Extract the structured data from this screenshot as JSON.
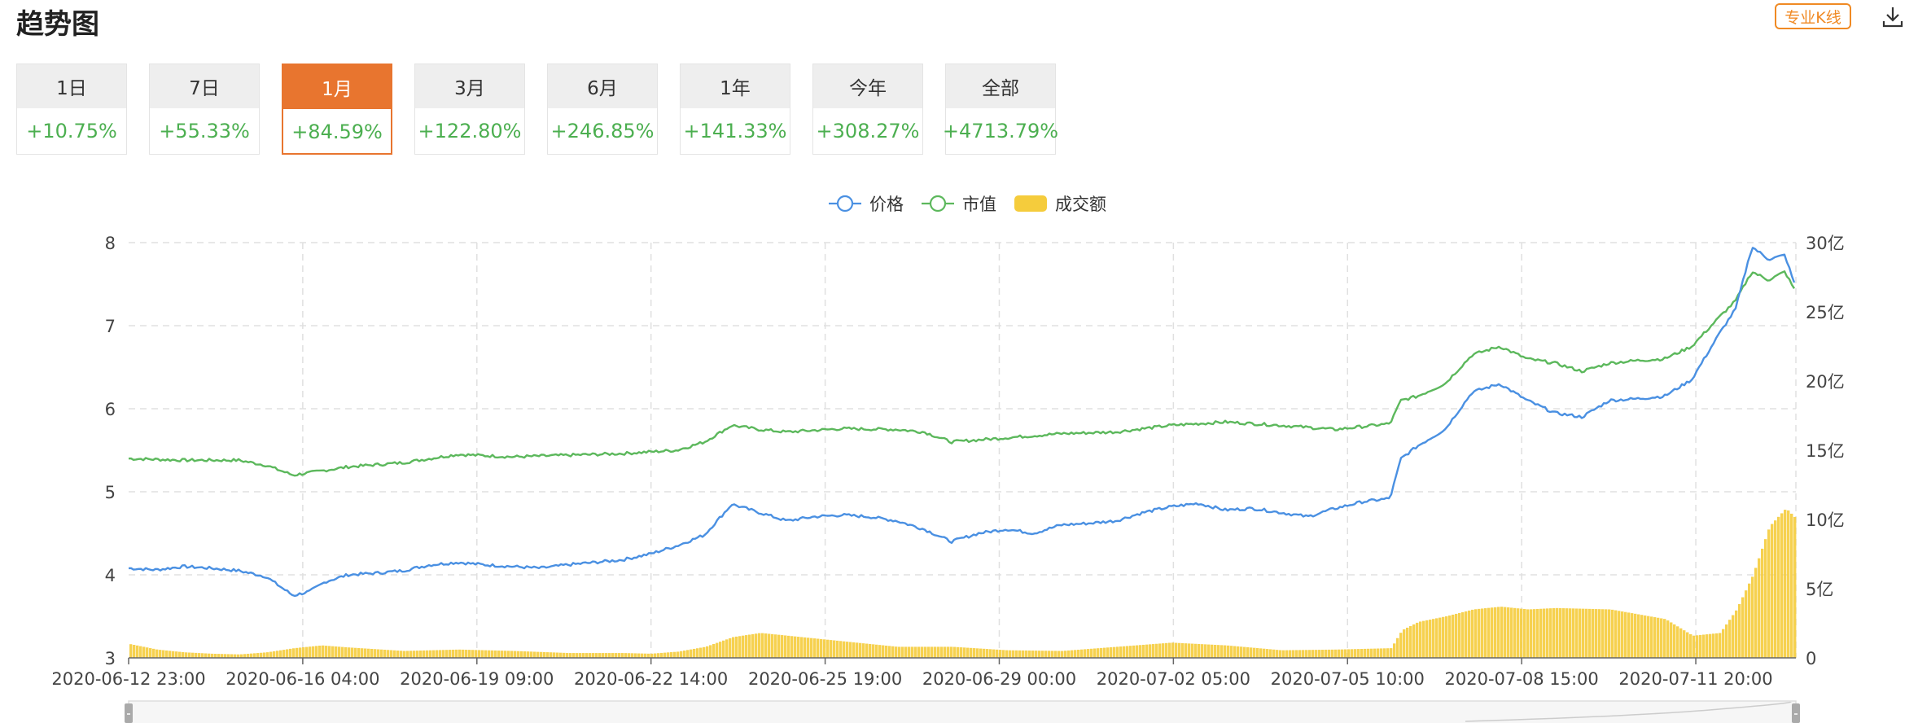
{
  "header": {
    "title": "趋势图",
    "kline_button": "专业K线",
    "download_icon": "download-icon"
  },
  "tabs": [
    {
      "label": "1日",
      "value": "+10.75%"
    },
    {
      "label": "7日",
      "value": "+55.33%"
    },
    {
      "label": "1月",
      "value": "+84.59%",
      "active": true
    },
    {
      "label": "3月",
      "value": "+122.80%"
    },
    {
      "label": "6月",
      "value": "+246.85%"
    },
    {
      "label": "1年",
      "value": "+141.33%"
    },
    {
      "label": "今年",
      "value": "+308.27%"
    },
    {
      "label": "全部",
      "value": "+4713.79%"
    }
  ],
  "colors": {
    "accent": "#e8752f",
    "positive": "#4caf50",
    "price": "#4a90e2",
    "market_cap": "#5cb85c",
    "volume": "#f5cc3c"
  },
  "chart_data": {
    "type": "line",
    "legend": [
      "价格",
      "市值",
      "成交额"
    ],
    "legend_position": "top-center",
    "grid": true,
    "x_tick_labels": [
      "2020-06-12 23:00",
      "2020-06-16 04:00",
      "2020-06-19 09:00",
      "2020-06-22 14:00",
      "2020-06-25 19:00",
      "2020-06-29 00:00",
      "2020-07-02 05:00",
      "2020-07-05 10:00",
      "2020-07-08 15:00",
      "2020-07-11 20:00"
    ],
    "y_left_ticks": [
      3,
      4,
      5,
      6,
      7,
      8
    ],
    "y_left_range": [
      3,
      8
    ],
    "y_right_ticks": [
      "0",
      "5亿",
      "10亿",
      "15亿",
      "20亿",
      "25亿",
      "30亿"
    ],
    "y_right_range": [
      0,
      30
    ],
    "x_range_days": [
      0,
      30.4
    ],
    "series": [
      {
        "name": "价格",
        "axis": "left",
        "x": [
          0,
          0.5,
          1,
          1.5,
          2,
          2.5,
          3,
          3.3,
          3.6,
          4,
          4.5,
          5,
          5.5,
          6,
          6.5,
          7,
          7.5,
          8,
          8.5,
          9,
          9.5,
          10,
          10.5,
          11,
          11.5,
          12,
          12.5,
          13,
          13.5,
          14,
          14.5,
          15,
          15.5,
          16,
          16.5,
          17,
          17.5,
          18,
          18.5,
          19,
          19.5,
          20,
          20.5,
          21,
          21.5,
          22,
          22.5,
          23,
          23.2,
          23.5,
          24,
          24.5,
          25,
          25.5,
          26,
          26.5,
          27,
          27.5,
          28,
          28.5,
          29,
          29.3,
          29.6,
          29.9,
          30.2,
          30.4
        ],
        "values": [
          4.08,
          4.06,
          4.1,
          4.08,
          4.05,
          3.98,
          3.75,
          3.8,
          3.92,
          4.0,
          4.02,
          4.05,
          4.12,
          4.15,
          4.12,
          4.1,
          4.08,
          4.12,
          4.15,
          4.18,
          4.25,
          4.35,
          4.48,
          4.85,
          4.75,
          4.65,
          4.7,
          4.72,
          4.7,
          4.65,
          4.55,
          4.4,
          4.5,
          4.55,
          4.5,
          4.6,
          4.62,
          4.65,
          4.75,
          4.82,
          4.86,
          4.78,
          4.8,
          4.75,
          4.7,
          4.8,
          4.88,
          4.92,
          5.4,
          5.55,
          5.75,
          6.2,
          6.3,
          6.1,
          5.95,
          5.9,
          6.1,
          6.12,
          6.15,
          6.35,
          6.9,
          7.2,
          7.95,
          7.8,
          7.85,
          7.45
        ]
      },
      {
        "name": "市值",
        "axis": "left",
        "x": [
          0,
          1,
          2,
          2.5,
          3,
          3.5,
          4,
          5,
          6,
          7,
          8,
          9,
          10,
          10.5,
          11,
          11.5,
          12,
          13,
          14,
          14.5,
          15,
          16,
          17,
          18,
          19,
          20,
          21,
          22,
          23,
          23.2,
          23.5,
          24,
          24.5,
          25,
          25.5,
          26,
          26.5,
          27,
          27.5,
          28,
          28.5,
          29,
          29.3,
          29.6,
          29.9,
          30.2,
          30.4
        ],
        "values": [
          5.4,
          5.38,
          5.38,
          5.32,
          5.2,
          5.25,
          5.3,
          5.35,
          5.45,
          5.42,
          5.44,
          5.46,
          5.5,
          5.6,
          5.8,
          5.75,
          5.72,
          5.76,
          5.75,
          5.72,
          5.6,
          5.65,
          5.7,
          5.72,
          5.8,
          5.84,
          5.8,
          5.75,
          5.82,
          6.1,
          6.15,
          6.3,
          6.65,
          6.75,
          6.6,
          6.55,
          6.45,
          6.55,
          6.58,
          6.6,
          6.75,
          7.1,
          7.3,
          7.65,
          7.55,
          7.65,
          7.4
        ]
      },
      {
        "name": "成交额",
        "axis": "right",
        "x": [
          0,
          0.5,
          1,
          1.5,
          2,
          2.5,
          3,
          3.5,
          4,
          5,
          6,
          7,
          8,
          9,
          9.5,
          10,
          10.5,
          11,
          11.5,
          12,
          13,
          14,
          15,
          16,
          17,
          18,
          18.5,
          19,
          20,
          21,
          22,
          23,
          23.2,
          23.5,
          24,
          24.5,
          25,
          25.5,
          26,
          27,
          28,
          28.5,
          29,
          29.3,
          29.6,
          29.9,
          30.2,
          30.4
        ],
        "values": [
          1.0,
          0.6,
          0.4,
          0.3,
          0.25,
          0.4,
          0.7,
          0.9,
          0.75,
          0.5,
          0.6,
          0.5,
          0.35,
          0.35,
          0.3,
          0.45,
          0.8,
          1.5,
          1.8,
          1.6,
          1.2,
          0.8,
          0.8,
          0.55,
          0.5,
          0.8,
          0.95,
          1.1,
          0.9,
          0.55,
          0.6,
          0.7,
          2.0,
          2.6,
          3.0,
          3.5,
          3.7,
          3.5,
          3.6,
          3.5,
          2.8,
          1.6,
          1.8,
          3.5,
          6.0,
          9.5,
          10.8,
          10.0
        ]
      }
    ]
  }
}
